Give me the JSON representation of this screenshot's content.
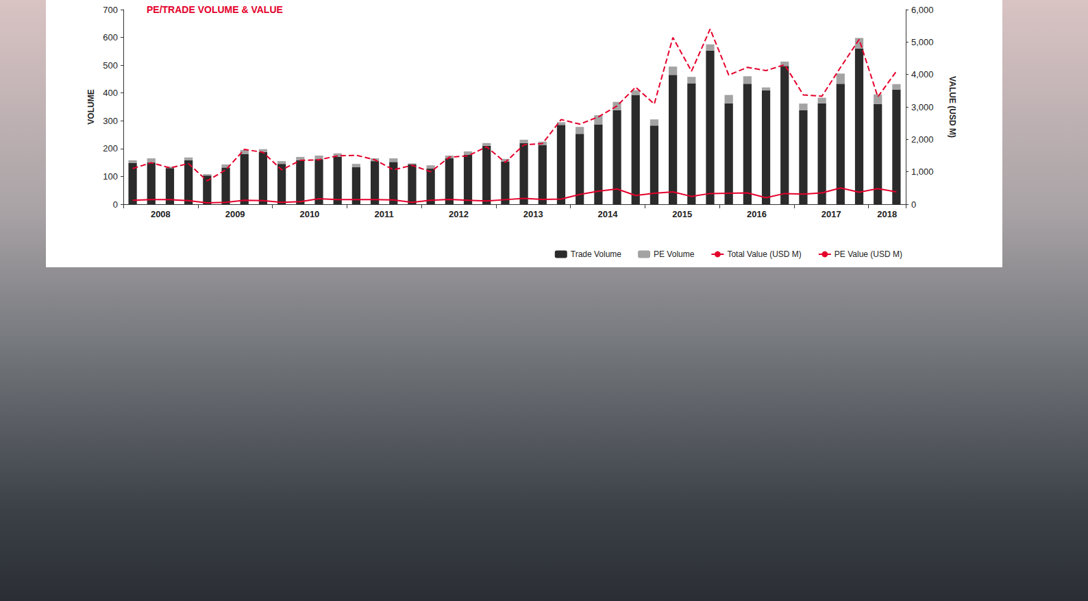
{
  "chart_data": {
    "type": "bar",
    "title": "PE/TRADE VOLUME & VALUE",
    "y_label": "VOLUME",
    "y2_label": "VALUE (USD M)",
    "stacked": true,
    "grid": false,
    "legend": "bottom-right",
    "categories": [
      "2008",
      null,
      null,
      null,
      "2009",
      null,
      null,
      null,
      "2010",
      null,
      null,
      null,
      "2011",
      null,
      null,
      null,
      "2012",
      null,
      null,
      null,
      "2013",
      null,
      null,
      null,
      "2014",
      null,
      null,
      null,
      "2015",
      null,
      null,
      null,
      "2016",
      null,
      null,
      null,
      "2017",
      null,
      null,
      null,
      "2018",
      null
    ],
    "ylim": [
      0,
      700
    ],
    "yticks": [
      0,
      100,
      200,
      300,
      400,
      500,
      600,
      700
    ],
    "y2lim": [
      0,
      6000
    ],
    "y2ticks": [
      0,
      {
        "value": 1000,
        "label": "1,000"
      },
      {
        "value": 2000,
        "label": "2,000"
      },
      {
        "value": 3000,
        "label": "3,000"
      },
      {
        "value": 4000,
        "label": "4,000"
      },
      {
        "value": 5000,
        "label": "5,000"
      },
      {
        "value": 6000,
        "label": "6,000"
      }
    ],
    "series": [
      {
        "name": "Trade Volume",
        "type": "bar",
        "color": "#2b2b2b",
        "values": [
          148,
          150,
          130,
          158,
          103,
          132,
          180,
          188,
          145,
          158,
          162,
          170,
          133,
          155,
          152,
          143,
          128,
          165,
          178,
          210,
          153,
          220,
          213,
          285,
          253,
          287,
          338,
          393,
          283,
          465,
          435,
          553,
          363,
          433,
          410,
          497,
          338,
          363,
          433,
          560,
          360,
          412
        ]
      },
      {
        "name": "PE Volume",
        "type": "bar",
        "color": "#a3a3a3",
        "values": [
          10,
          15,
          5,
          10,
          5,
          11,
          15,
          10,
          10,
          12,
          13,
          13,
          12,
          10,
          13,
          4,
          12,
          10,
          12,
          10,
          10,
          12,
          12,
          10,
          25,
          33,
          30,
          17,
          22,
          30,
          23,
          22,
          30,
          27,
          10,
          16,
          24,
          20,
          37,
          38,
          35,
          20
        ]
      },
      {
        "name": "Total Value (USD M)",
        "type": "line",
        "axis": "y2",
        "color": "#e4002b",
        "line_style": "dashed",
        "values": [
          1100,
          1280,
          1120,
          1250,
          720,
          1060,
          1690,
          1600,
          1060,
          1350,
          1370,
          1490,
          1510,
          1370,
          1060,
          1200,
          1000,
          1450,
          1490,
          1770,
          1290,
          1830,
          1870,
          2610,
          2470,
          2690,
          3030,
          3610,
          3090,
          5140,
          4100,
          5400,
          3980,
          4220,
          4120,
          4300,
          3370,
          3330,
          4220,
          5080,
          3310,
          4100
        ]
      },
      {
        "name": "PE Value (USD M)",
        "type": "line",
        "axis": "y2",
        "color": "#e4002b",
        "line_style": "solid",
        "values": [
          120,
          140,
          140,
          110,
          40,
          60,
          120,
          110,
          60,
          80,
          170,
          140,
          140,
          140,
          130,
          60,
          120,
          150,
          120,
          100,
          140,
          180,
          150,
          160,
          300,
          400,
          470,
          270,
          340,
          380,
          240,
          330,
          340,
          350,
          200,
          330,
          310,
          350,
          500,
          370,
          480,
          380
        ]
      }
    ]
  }
}
